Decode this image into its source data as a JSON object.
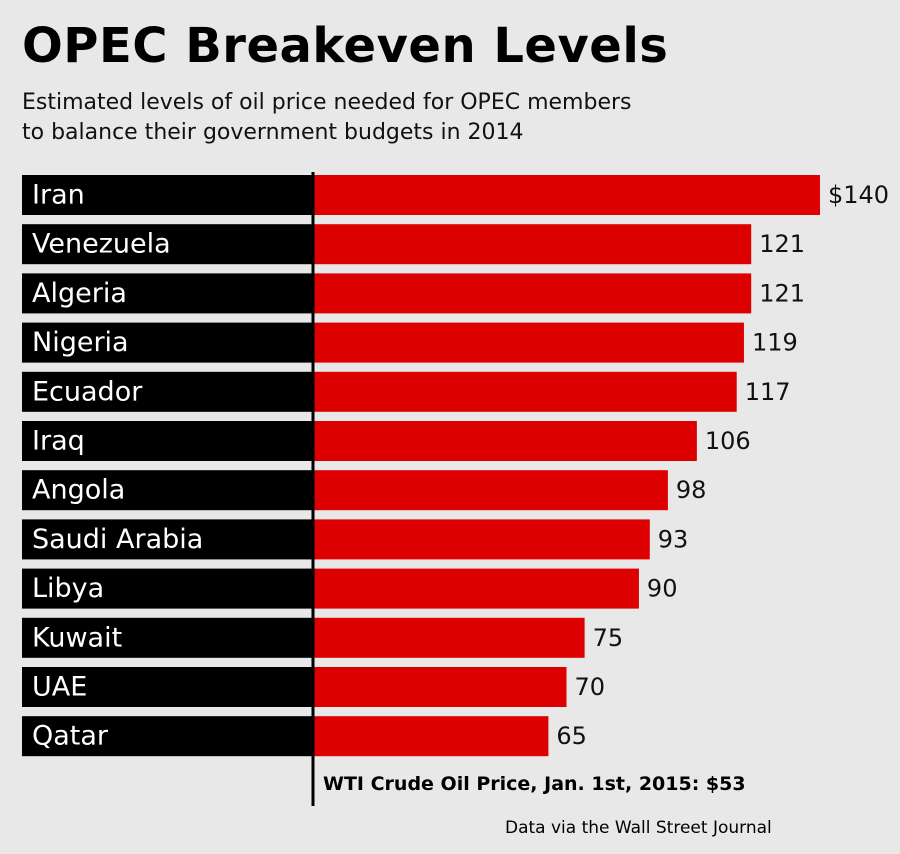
{
  "title": "OPEC Breakeven Levels",
  "subtitle": {
    "line1": "Estimated levels of oil price needed for OPEC members",
    "line2": "to balance their government budgets in 2014"
  },
  "chart_data": {
    "type": "bar",
    "orientation": "horizontal",
    "title": "OPEC Breakeven Levels",
    "xlabel": "",
    "ylabel": "",
    "categories": [
      "Iran",
      "Venezuela",
      "Algeria",
      "Nigeria",
      "Ecuador",
      "Iraq",
      "Angola",
      "Saudi Arabia",
      "Libya",
      "Kuwait",
      "UAE",
      "Qatar"
    ],
    "values": [
      140,
      121,
      121,
      119,
      117,
      106,
      98,
      93,
      90,
      75,
      70,
      65
    ],
    "value_labels": [
      "$140",
      "121",
      "121",
      "119",
      "117",
      "106",
      "98",
      "93",
      "90",
      "75",
      "70",
      "65"
    ],
    "xlim": [
      0,
      140
    ],
    "grid": false,
    "bar_color": "#dd0000",
    "label_bg_color": "#000000",
    "label_text_color": "#ffffff"
  },
  "footnote": "WTI Crude Oil Price, Jan. 1st, 2015: $53",
  "source": "Data via the Wall Street Journal",
  "colors": {
    "background": "#e8e8e8",
    "bar": "#dd0000",
    "axis": "#000000"
  }
}
